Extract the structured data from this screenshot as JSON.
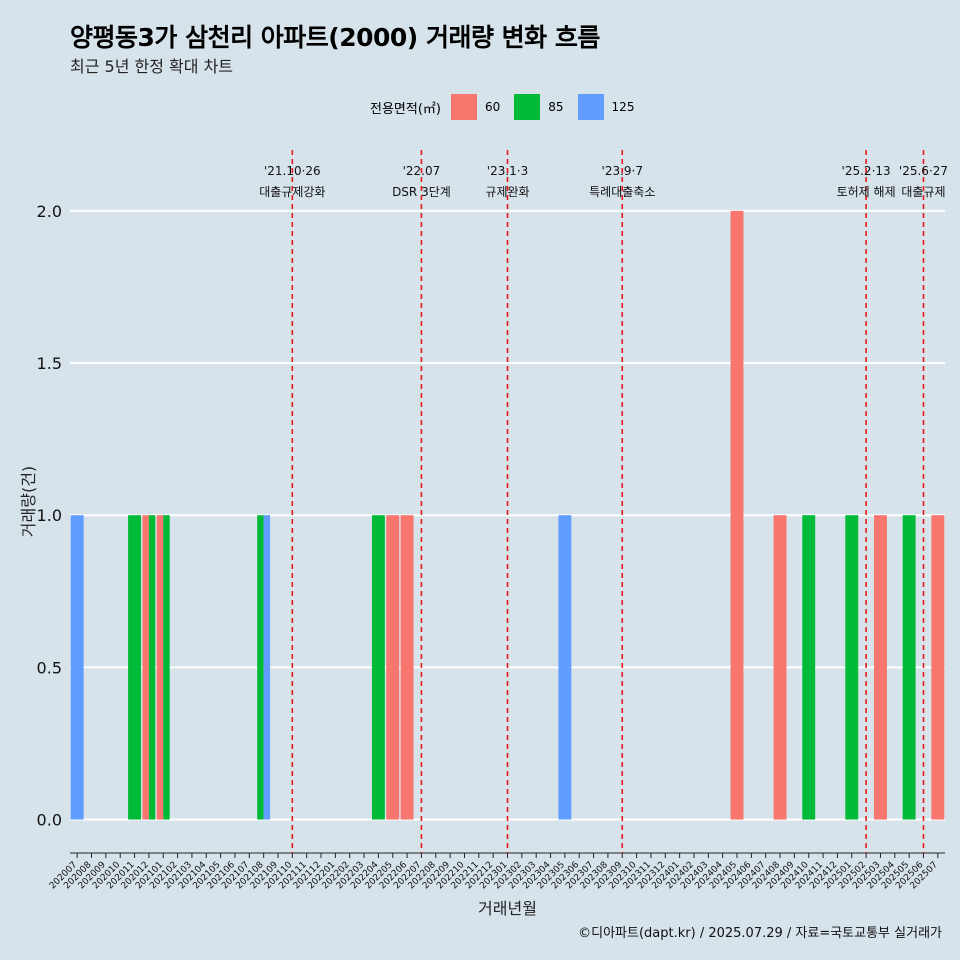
{
  "title": "양평동3가 삼천리 아파트(2000) 거래량 변화 흐름",
  "subtitle": "최근 5년 한정 확대 차트",
  "caption": "©디아파트(dapt.kr) / 2025.07.29 / 자료=국토교통부 실거래가",
  "legend": {
    "title": "전용면적(㎡)",
    "items": [
      {
        "label": "60",
        "color": "#f8766d"
      },
      {
        "label": "85",
        "color": "#00ba38"
      },
      {
        "label": "125",
        "color": "#619cff"
      }
    ]
  },
  "chart_data": {
    "type": "bar",
    "xlabel": "거래년월",
    "ylabel": "거래량(건)",
    "ylim": [
      -0.11,
      2.2
    ],
    "yticks": [
      0.0,
      0.5,
      1.0,
      1.5,
      2.0
    ],
    "ytick_labels": [
      "0.0",
      "0.5",
      "1.0",
      "1.5",
      "2.0"
    ],
    "categories": [
      "202007",
      "202008",
      "202009",
      "202010",
      "202011",
      "202012",
      "202101",
      "202102",
      "202103",
      "202104",
      "202105",
      "202106",
      "202107",
      "202108",
      "202109",
      "202110",
      "202111",
      "202112",
      "202201",
      "202202",
      "202203",
      "202204",
      "202205",
      "202206",
      "202207",
      "202208",
      "202209",
      "202210",
      "202211",
      "202212",
      "202301",
      "202302",
      "202303",
      "202304",
      "202305",
      "202306",
      "202307",
      "202308",
      "202309",
      "202310",
      "202311",
      "202312",
      "202401",
      "202402",
      "202403",
      "202404",
      "202405",
      "202406",
      "202407",
      "202408",
      "202409",
      "202410",
      "202411",
      "202412",
      "202501",
      "202502",
      "202503",
      "202504",
      "202505",
      "202506",
      "202507"
    ],
    "series": [
      {
        "name": "60",
        "color": "#f8766d",
        "points": [
          {
            "x": "202012",
            "y": 1
          },
          {
            "x": "202101",
            "y": 1
          },
          {
            "x": "202205",
            "y": 1
          },
          {
            "x": "202206",
            "y": 1
          },
          {
            "x": "202405",
            "y": 2
          },
          {
            "x": "202408",
            "y": 1
          },
          {
            "x": "202503",
            "y": 1
          },
          {
            "x": "202507",
            "y": 1
          }
        ]
      },
      {
        "name": "85",
        "color": "#00ba38",
        "points": [
          {
            "x": "202011",
            "y": 1
          },
          {
            "x": "202012",
            "y": 1
          },
          {
            "x": "202101",
            "y": 1
          },
          {
            "x": "202108",
            "y": 1
          },
          {
            "x": "202204",
            "y": 1
          },
          {
            "x": "202410",
            "y": 1
          },
          {
            "x": "202501",
            "y": 1
          },
          {
            "x": "202505",
            "y": 1
          }
        ]
      },
      {
        "name": "125",
        "color": "#619cff",
        "points": [
          {
            "x": "202007",
            "y": 1
          },
          {
            "x": "202108",
            "y": 1
          },
          {
            "x": "202305",
            "y": 1
          }
        ]
      }
    ],
    "annotations": [
      {
        "at": "202110",
        "date": "'21.10·26",
        "label": "대출규제강화",
        "line_color": "#e41a1c"
      },
      {
        "at": "202207",
        "date": "'22.07",
        "label": "DSR 3단계",
        "line_color": "#e41a1c"
      },
      {
        "at": "202301",
        "date": "'23.1·3",
        "label": "규제완화",
        "line_color": "#e41a1c"
      },
      {
        "at": "202309",
        "date": "'23.9·7",
        "label": "특례대출축소",
        "line_color": "#e41a1c"
      },
      {
        "at": "202502",
        "date": "'25.2·13",
        "label": "토허제 해제",
        "line_color": "#e41a1c"
      },
      {
        "at": "202506",
        "date": "'25.6·27",
        "label": "대출규제",
        "line_color": "#e41a1c"
      }
    ],
    "grid": true,
    "legend_position": "top"
  }
}
